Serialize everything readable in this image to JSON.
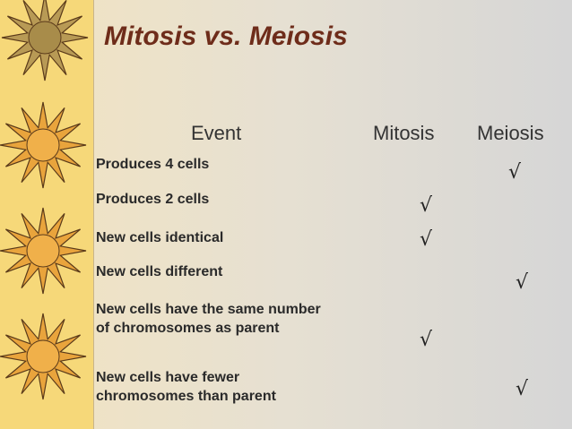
{
  "header": {
    "title": "Mitosis vs. Meiosis"
  },
  "table": {
    "columns": {
      "event": "Event",
      "mitosis": "Mitosis",
      "meiosis": "Meiosis"
    },
    "rows": [
      {
        "event": "Produces 4 cells",
        "meiosis": "√"
      },
      {
        "event": "Produces 2 cells",
        "mitosis": "√"
      },
      {
        "event": "New cells identical",
        "mitosis": "√"
      },
      {
        "event": "New cells different",
        "meiosis": "√"
      },
      {
        "event": "New cells have the same number of chromosomes as parent",
        "mitosis": "√"
      },
      {
        "event": "New cells have fewer chromosomes than parent",
        "meiosis": "√"
      }
    ]
  }
}
